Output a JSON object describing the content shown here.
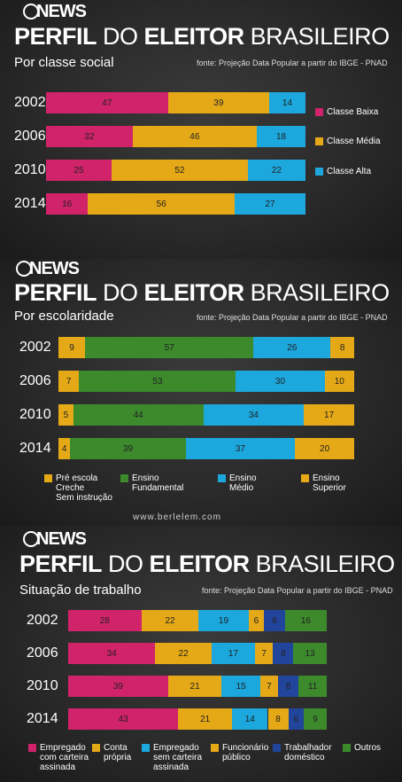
{
  "brand": "NEWS",
  "colors": {
    "pink": "#d1236a",
    "yellow": "#e5a917",
    "blue": "#1ca7dd",
    "green": "#3c8a2c",
    "navy": "#22459c"
  },
  "watermark": "www.berlelem.com",
  "panels": [
    {
      "title_bold1": "PERFIL",
      "title_light1": "DO",
      "title_bold2": "ELEITOR",
      "title_light2": "BRASILEIRO",
      "subtitle": "Por classe social",
      "fonte": "fonte: Projeção Data Popular a partir do IBGE - PNAD",
      "legend": [
        {
          "label": "Classe Baixa",
          "color": "#d1236a"
        },
        {
          "label": "Classe Média",
          "color": "#e5a917"
        },
        {
          "label": "Classe Alta",
          "color": "#1ca7dd"
        }
      ]
    },
    {
      "title_bold1": "PERFIL",
      "title_light1": "DO",
      "title_bold2": "ELEITOR",
      "title_light2": "BRASILEIRO",
      "subtitle": "Por escolaridade",
      "fonte": "fonte: Projeção Data Popular a partir do IBGE - PNAD",
      "legend": [
        {
          "label": "Pré escola\nCreche\nSem instrução",
          "color": "#e5a917"
        },
        {
          "label": "Ensino\nFundamental",
          "color": "#3c8a2c"
        },
        {
          "label": "Ensino\nMédio",
          "color": "#1ca7dd"
        },
        {
          "label": "Ensino\nSuperior",
          "color": "#e5a917"
        }
      ]
    },
    {
      "title_bold1": "PERFIL",
      "title_light1": "DO",
      "title_bold2": "ELEITOR",
      "title_light2": "BRASILEIRO",
      "subtitle": "Situação de trabalho",
      "fonte": "fonte: Projeção Data Popular a partir do IBGE - PNAD",
      "legend": [
        {
          "label": "Empregado\ncom carteira\nassinada",
          "color": "#d1236a"
        },
        {
          "label": "Conta\nprópria",
          "color": "#e5a917"
        },
        {
          "label": "Empregado\nsem carteira\nassinada",
          "color": "#1ca7dd"
        },
        {
          "label": "Funcionário\npúblico",
          "color": "#e5a917"
        },
        {
          "label": "Trabalhador\ndoméstico",
          "color": "#22459c"
        },
        {
          "label": "Outros",
          "color": "#3c8a2c"
        }
      ]
    }
  ],
  "chart_data": [
    {
      "type": "bar",
      "orientation": "horizontal-stacked",
      "title": "PERFIL DO ELEITOR BRASILEIRO",
      "subtitle": "Por classe social",
      "categories": [
        "2002",
        "2006",
        "2010",
        "2014"
      ],
      "series": [
        {
          "name": "Classe Baixa",
          "color": "#d1236a",
          "values": [
            47,
            32,
            25,
            16
          ]
        },
        {
          "name": "Classe Média",
          "color": "#e5a917",
          "values": [
            39,
            46,
            52,
            56
          ]
        },
        {
          "name": "Classe Alta",
          "color": "#1ca7dd",
          "values": [
            14,
            18,
            22,
            27
          ]
        }
      ],
      "labels": [
        [
          "47",
          "39",
          "14"
        ],
        [
          "32",
          "46",
          "18"
        ],
        [
          "25",
          "52",
          "22"
        ],
        [
          "16",
          "56",
          "27"
        ]
      ]
    },
    {
      "type": "bar",
      "orientation": "horizontal-stacked",
      "title": "PERFIL DO ELEITOR BRASILEIRO",
      "subtitle": "Por escolaridade",
      "categories": [
        "2002",
        "2006",
        "2010",
        "2014"
      ],
      "series": [
        {
          "name": "Pré escola Creche Sem instrução",
          "color": "#e5a917",
          "values": [
            9,
            7,
            5,
            4
          ]
        },
        {
          "name": "Ensino Fundamental",
          "color": "#3c8a2c",
          "values": [
            57,
            53,
            44,
            39
          ]
        },
        {
          "name": "Ensino Médio",
          "color": "#1ca7dd",
          "values": [
            26,
            30,
            34,
            37
          ]
        },
        {
          "name": "Ensino Superior",
          "color": "#e5a917",
          "values": [
            8,
            10,
            17,
            20
          ]
        }
      ],
      "labels": [
        [
          "9",
          "57",
          "26",
          "8"
        ],
        [
          "7",
          "53",
          "30",
          "10"
        ],
        [
          "5",
          "44",
          "34",
          "17"
        ],
        [
          "4",
          "39",
          "37",
          "20"
        ]
      ]
    },
    {
      "type": "bar",
      "orientation": "horizontal-stacked",
      "title": "PERFIL DO ELEITOR BRASILEIRO",
      "subtitle": "Situação de trabalho",
      "categories": [
        "2002",
        "2006",
        "2010",
        "2014"
      ],
      "series": [
        {
          "name": "Empregado com carteira assinada",
          "color": "#d1236a",
          "values": [
            28,
            34,
            39,
            43
          ]
        },
        {
          "name": "Conta própria",
          "color": "#e5a917",
          "values": [
            22,
            22,
            21,
            21
          ]
        },
        {
          "name": "Empregado sem carteira assinada",
          "color": "#1ca7dd",
          "values": [
            19,
            17,
            15,
            14
          ]
        },
        {
          "name": "Funcionário público",
          "color": "#e5a917",
          "values": [
            6,
            7,
            7,
            8
          ]
        },
        {
          "name": "Trabalhador doméstico",
          "color": "#22459c",
          "values": [
            8,
            8,
            8,
            6
          ]
        },
        {
          "name": "Outros",
          "color": "#3c8a2c",
          "values": [
            16,
            13,
            11,
            9
          ]
        }
      ],
      "labels": [
        [
          "28",
          "22",
          "19",
          "6",
          "8",
          "16"
        ],
        [
          "34",
          "22",
          "17",
          "7",
          "8",
          "13"
        ],
        [
          "39",
          "21",
          "15",
          "7",
          "8",
          "11"
        ],
        [
          "43",
          "21",
          "14",
          "8",
          "6",
          "9"
        ]
      ]
    }
  ]
}
